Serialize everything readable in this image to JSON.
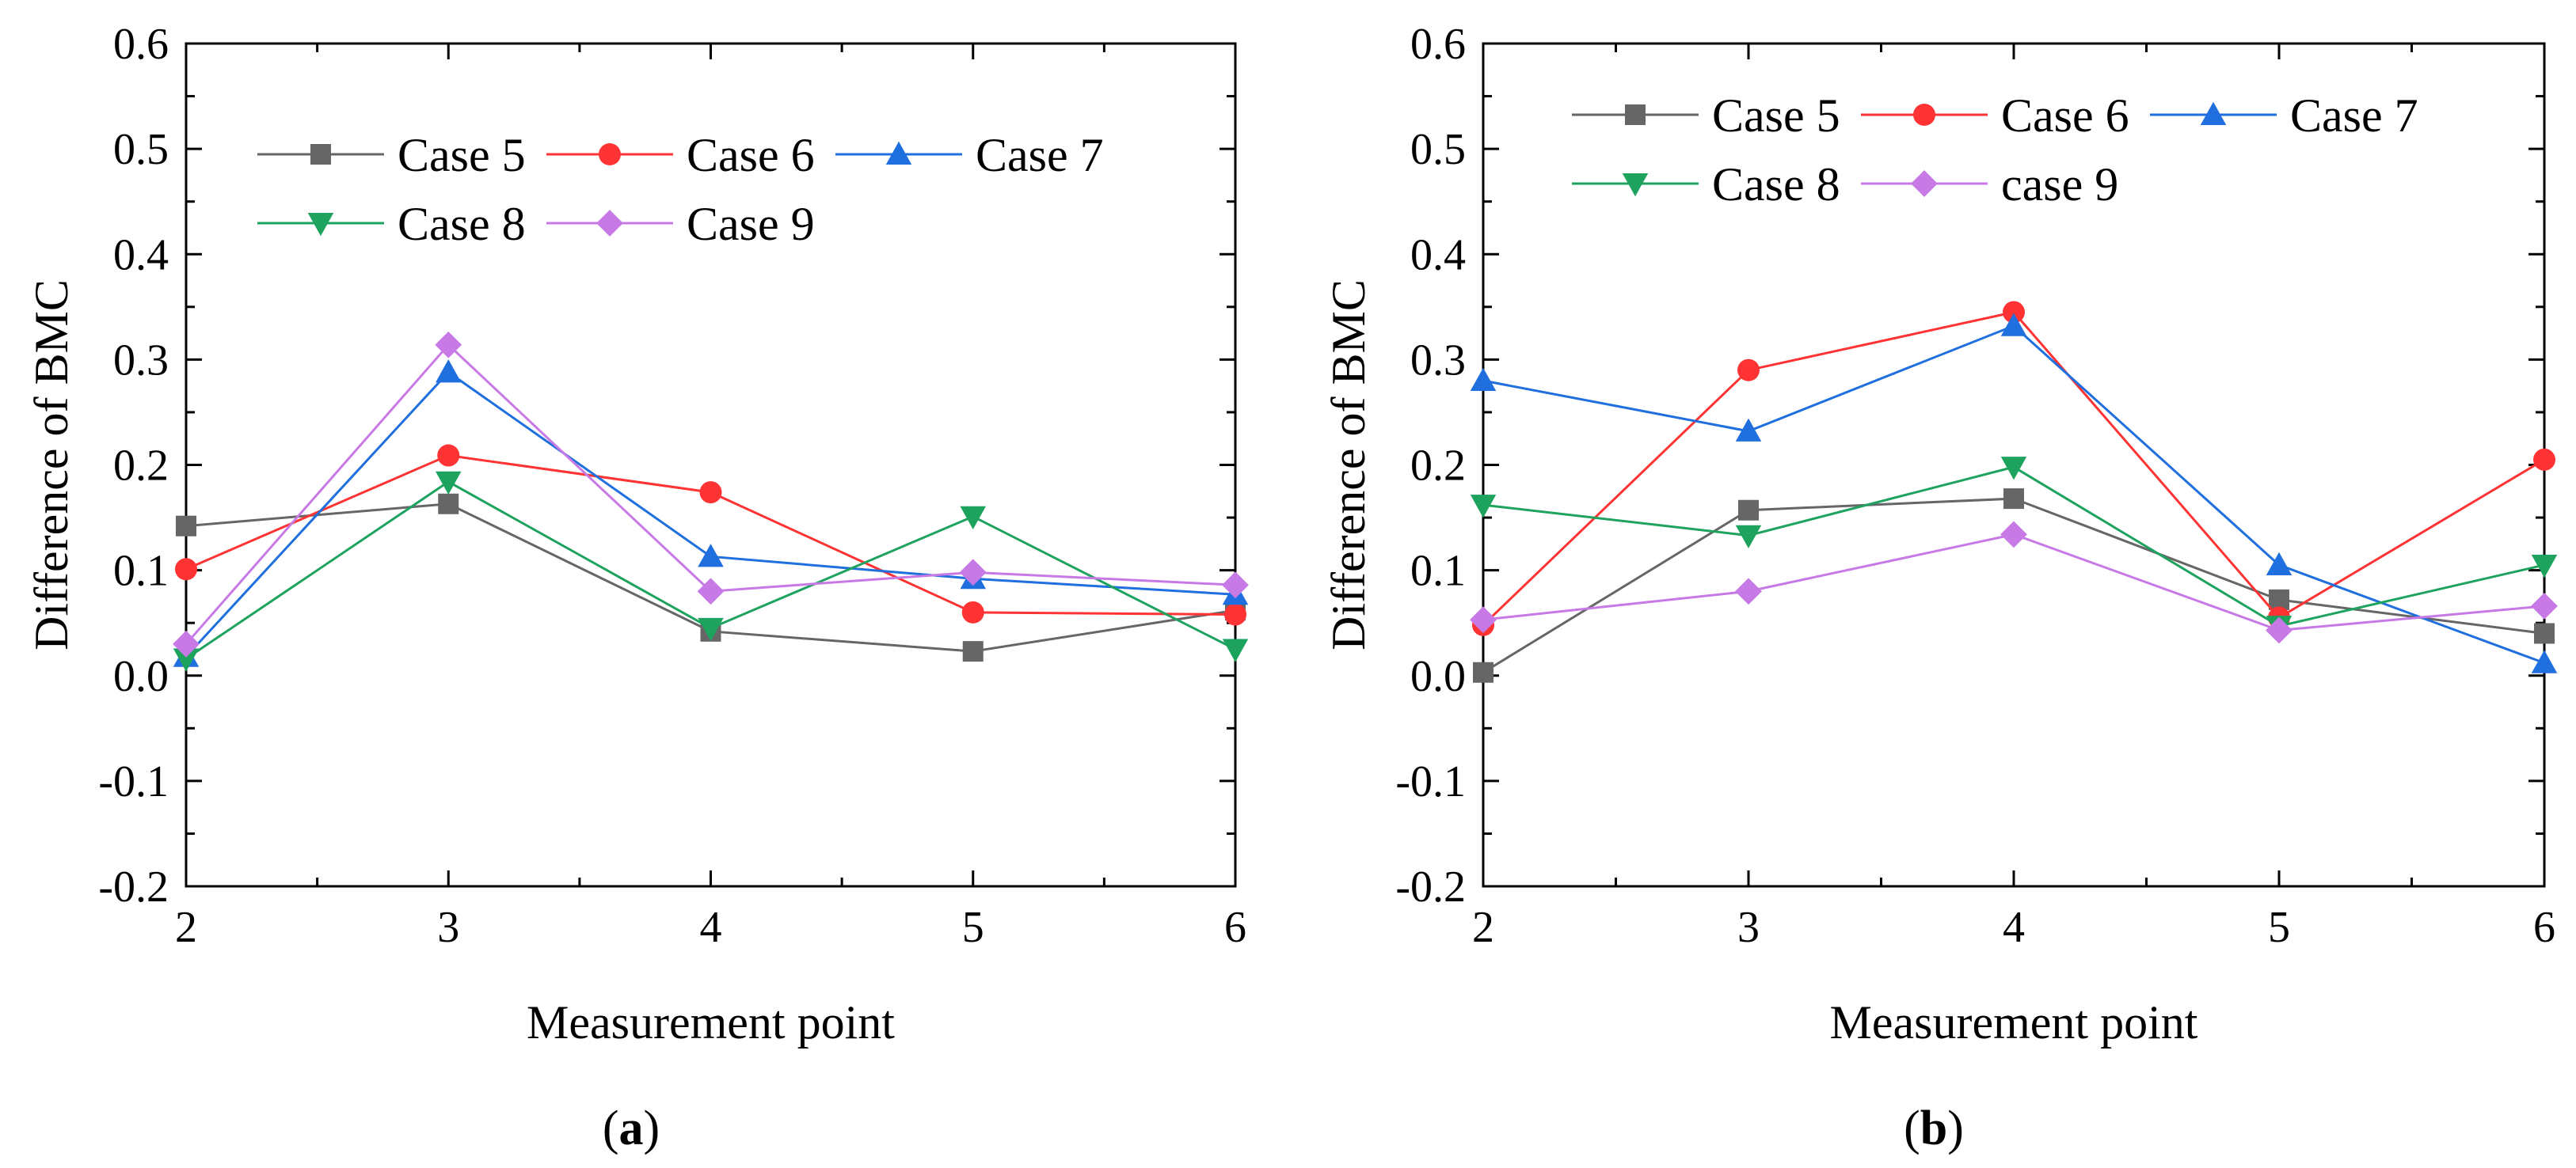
{
  "chart_data": [
    {
      "type": "line",
      "panel_label": "(a)",
      "panel_letter": "a",
      "xlabel": "Measurement point",
      "ylabel": "Difference of BMC",
      "xlim": [
        2,
        6
      ],
      "ylim": [
        -0.2,
        0.6
      ],
      "x_ticks": [
        "2",
        "3",
        "4",
        "5",
        "6"
      ],
      "y_ticks": [
        "-0.2",
        "-0.1",
        "0.0",
        "0.1",
        "0.2",
        "0.3",
        "0.4",
        "0.5",
        "0.6"
      ],
      "legend_position": "top-left",
      "grid": false,
      "x": [
        2,
        3,
        4,
        5,
        6
      ],
      "series": [
        {
          "name": "Case 5",
          "color": "#666666",
          "marker": "square",
          "values": [
            0.142,
            0.163,
            0.042,
            0.023,
            0.062
          ]
        },
        {
          "name": "Case 6",
          "color": "#ff3333",
          "marker": "circle",
          "values": [
            0.101,
            0.209,
            0.174,
            0.06,
            0.058
          ]
        },
        {
          "name": "Case 7",
          "color": "#1f6fde",
          "marker": "triangle-up",
          "values": [
            0.018,
            0.288,
            0.113,
            0.092,
            0.077
          ]
        },
        {
          "name": "Case 8",
          "color": "#1ea35f",
          "marker": "triangle-down",
          "values": [
            0.016,
            0.184,
            0.045,
            0.151,
            0.025
          ]
        },
        {
          "name": "Case 9",
          "color": "#c77ae6",
          "marker": "diamond",
          "values": [
            0.03,
            0.314,
            0.08,
            0.098,
            0.086
          ]
        }
      ]
    },
    {
      "type": "line",
      "panel_label": "(b)",
      "panel_letter": "b",
      "xlabel": "Measurement point",
      "ylabel": "Difference of BMC",
      "xlim": [
        2,
        6
      ],
      "ylim": [
        -0.2,
        0.6
      ],
      "x_ticks": [
        "2",
        "3",
        "4",
        "5",
        "6"
      ],
      "y_ticks": [
        "-0.2",
        "-0.1",
        "0.0",
        "0.1",
        "0.2",
        "0.3",
        "0.4",
        "0.5",
        "0.6"
      ],
      "legend_position": "top-left",
      "grid": false,
      "x": [
        2,
        3,
        4,
        5,
        6
      ],
      "series": [
        {
          "name": "Case 5",
          "color": "#666666",
          "marker": "square",
          "values": [
            0.003,
            0.157,
            0.168,
            0.072,
            0.04
          ]
        },
        {
          "name": "Case 6",
          "color": "#ff3333",
          "marker": "circle",
          "values": [
            0.048,
            0.29,
            0.345,
            0.055,
            0.205
          ]
        },
        {
          "name": "Case 7",
          "color": "#1f6fde",
          "marker": "triangle-up",
          "values": [
            0.28,
            0.232,
            0.332,
            0.105,
            0.012
          ]
        },
        {
          "name": "Case 8",
          "color": "#1ea35f",
          "marker": "triangle-down",
          "values": [
            0.162,
            0.133,
            0.198,
            0.047,
            0.105
          ]
        },
        {
          "name": "case 9",
          "color": "#c77ae6",
          "marker": "diamond",
          "values": [
            0.053,
            0.08,
            0.134,
            0.043,
            0.066
          ]
        }
      ]
    }
  ]
}
